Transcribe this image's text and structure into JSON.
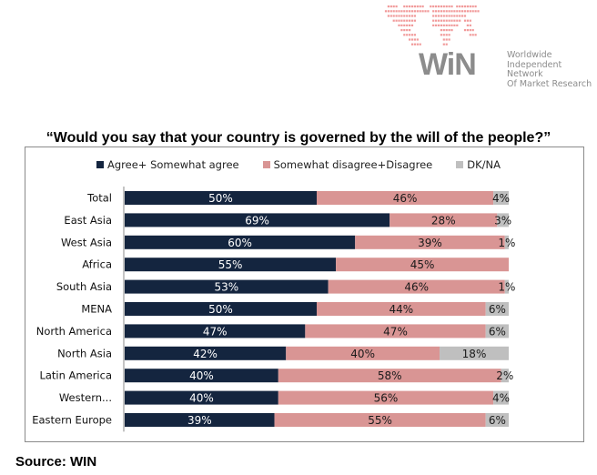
{
  "logo": {
    "wordmark": "WiN",
    "tagline": [
      "Worldwide",
      "Independent Network",
      "Of Market Research"
    ]
  },
  "source": "Source: WIN",
  "chart_data": {
    "type": "bar",
    "orientation": "horizontal",
    "stacked": true,
    "title": "“Would you say that your country is governed by the will of the people?”",
    "xlabel": "",
    "ylabel": "",
    "xlim": [
      0,
      100
    ],
    "grid": false,
    "legend_position": "top",
    "categories": [
      "Total",
      "East Asia",
      "West Asia",
      "Africa",
      "South Asia",
      "MENA",
      "North America",
      "North Asia",
      "Latin America",
      "Western...",
      "Eastern Europe"
    ],
    "series": [
      {
        "name": "Agree+ Somewhat agree",
        "color": "#14253f",
        "label_color": "#ffffff",
        "values": [
          50,
          69,
          60,
          55,
          53,
          50,
          47,
          42,
          40,
          40,
          39
        ]
      },
      {
        "name": "Somewhat disagree+Disagree",
        "color": "#d99594",
        "label_color": "#1a1a1a",
        "values": [
          46,
          28,
          39,
          45,
          46,
          44,
          47,
          40,
          58,
          56,
          55
        ]
      },
      {
        "name": "DK/NA",
        "color": "#bfbfbf",
        "label_color": "#1a1a1a",
        "values": [
          4,
          3,
          1,
          0,
          1,
          6,
          6,
          18,
          2,
          4,
          6
        ]
      }
    ],
    "value_suffix": "%"
  }
}
